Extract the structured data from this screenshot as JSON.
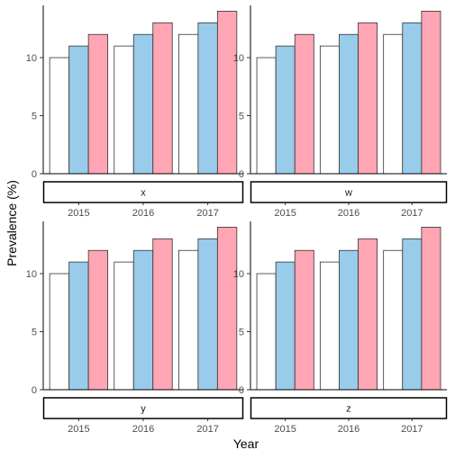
{
  "chart_data": {
    "type": "bar",
    "xlabel": "Year",
    "ylabel": "Prevalence (%)",
    "categories": [
      "2015",
      "2016",
      "2017"
    ],
    "ylim": [
      0,
      14.5
    ],
    "yticks": [
      0,
      5,
      10
    ],
    "grid": false,
    "legend": "none",
    "series_colors": [
      "#ffffff",
      "#99cbea",
      "#ffa5b4"
    ],
    "panels": [
      {
        "label": "x",
        "series": [
          {
            "values": [
              10,
              11,
              12
            ]
          },
          {
            "values": [
              11,
              12,
              13
            ]
          },
          {
            "values": [
              12,
              13,
              14
            ]
          }
        ]
      },
      {
        "label": "w",
        "series": [
          {
            "values": [
              10,
              11,
              12
            ]
          },
          {
            "values": [
              11,
              12,
              13
            ]
          },
          {
            "values": [
              12,
              13,
              14
            ]
          }
        ]
      },
      {
        "label": "y",
        "series": [
          {
            "values": [
              10,
              11,
              12
            ]
          },
          {
            "values": [
              11,
              12,
              13
            ]
          },
          {
            "values": [
              12,
              13,
              14
            ]
          }
        ]
      },
      {
        "label": "z",
        "series": [
          {
            "values": [
              10,
              11,
              12
            ]
          },
          {
            "values": [
              11,
              12,
              13
            ]
          },
          {
            "values": [
              12,
              13,
              14
            ]
          }
        ]
      }
    ]
  }
}
